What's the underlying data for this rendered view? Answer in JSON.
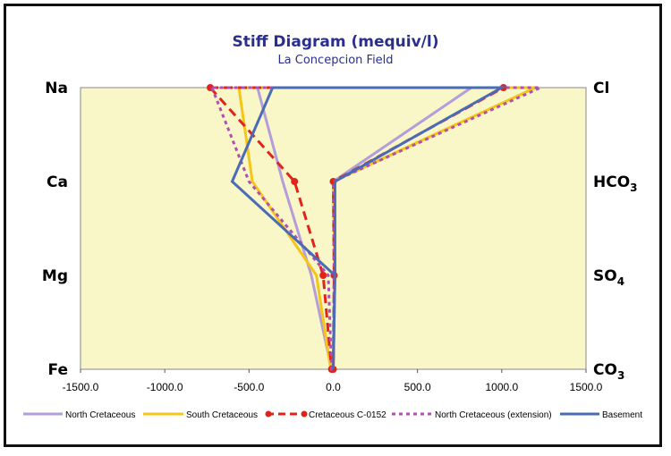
{
  "chart_data": {
    "type": "line",
    "title": "Stiff Diagram (mequiv/l)",
    "subtitle": "La Concepcion Field",
    "xlim": [
      -1500,
      1500
    ],
    "x_ticks": [
      "-1500.0",
      "-1000.0",
      "-500.0",
      "0.0",
      "500.0",
      "1000.0",
      "1500.0"
    ],
    "x_tick_values": [
      -1500,
      -1000,
      -500,
      0,
      500,
      1000,
      1500
    ],
    "left_labels": [
      "Na",
      "Ca",
      "Mg",
      "Fe"
    ],
    "right_labels": [
      {
        "base": "Cl",
        "sub": ""
      },
      {
        "base": "HCO",
        "sub": "3"
      },
      {
        "base": "SO",
        "sub": "4"
      },
      {
        "base": "CO",
        "sub": "3"
      }
    ],
    "grid": false,
    "legend_position": "bottom",
    "plot_background": "#f9f6c8",
    "series": [
      {
        "name": "North Cretaceous",
        "color": "#b39ddb",
        "style": "solid",
        "markers": false,
        "left": [
          -450,
          -300,
          -130,
          -10
        ],
        "right": [
          820,
          0,
          10,
          0
        ]
      },
      {
        "name": "South Cretaceous",
        "color": "#f5c518",
        "style": "solid",
        "markers": false,
        "left": [
          -560,
          -480,
          -100,
          -15
        ],
        "right": [
          1200,
          0,
          10,
          0
        ]
      },
      {
        "name": "Cretaceous C-0152",
        "color": "#e0241b",
        "style": "dashed",
        "markers": true,
        "left": [
          -730,
          -230,
          -60,
          -10
        ],
        "right": [
          1010,
          0,
          5,
          0
        ]
      },
      {
        "name": "North Cretaceous (extension)",
        "color": "#b04fb0",
        "style": "dotted",
        "markers": false,
        "left": [
          -720,
          -500,
          -30,
          -10
        ],
        "right": [
          1230,
          0,
          5,
          0
        ]
      },
      {
        "name": "Basement",
        "color": "#4a6bb5",
        "style": "solid",
        "markers": false,
        "left": [
          -360,
          -600,
          10,
          0
        ],
        "right": [
          1000,
          10,
          10,
          0
        ]
      }
    ]
  }
}
